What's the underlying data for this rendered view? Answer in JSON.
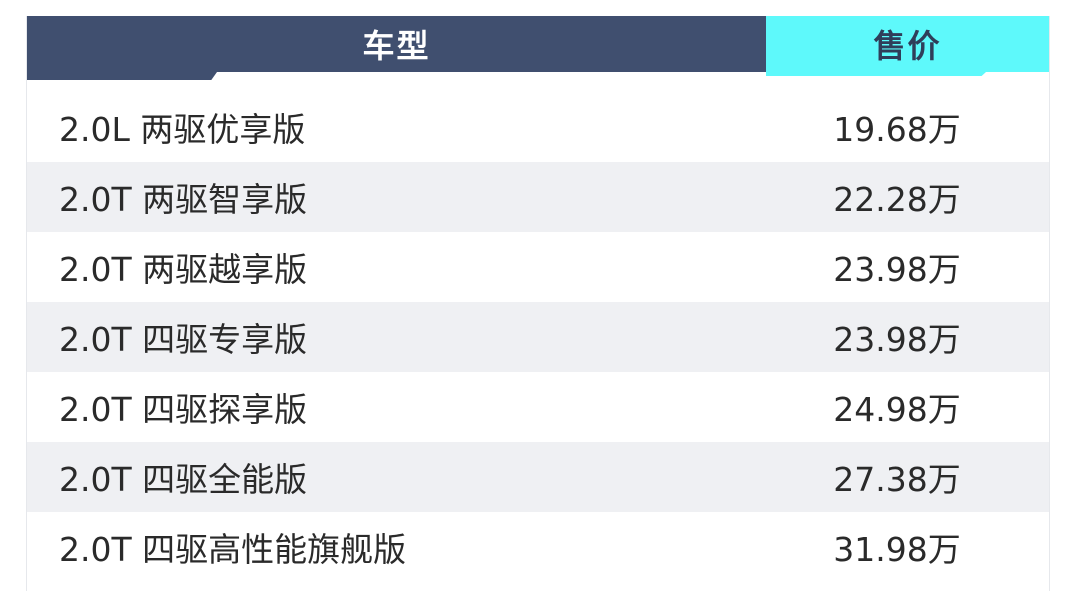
{
  "header": {
    "model": "车型",
    "price": "售价"
  },
  "colors": {
    "header_dark": "#404f6f",
    "header_accent": "#5ef9fb",
    "row_alt": "#eff0f3"
  },
  "rows": [
    {
      "model": "2.0L 两驱优享版",
      "price": "19.68万"
    },
    {
      "model": "2.0T 两驱智享版",
      "price": "22.28万"
    },
    {
      "model": "2.0T 两驱越享版",
      "price": "23.98万"
    },
    {
      "model": "2.0T 四驱专享版",
      "price": "23.98万"
    },
    {
      "model": "2.0T 四驱探享版",
      "price": "24.98万"
    },
    {
      "model": "2.0T 四驱全能版",
      "price": "27.38万"
    },
    {
      "model": "2.0T 四驱高性能旗舰版",
      "price": "31.98万"
    }
  ]
}
